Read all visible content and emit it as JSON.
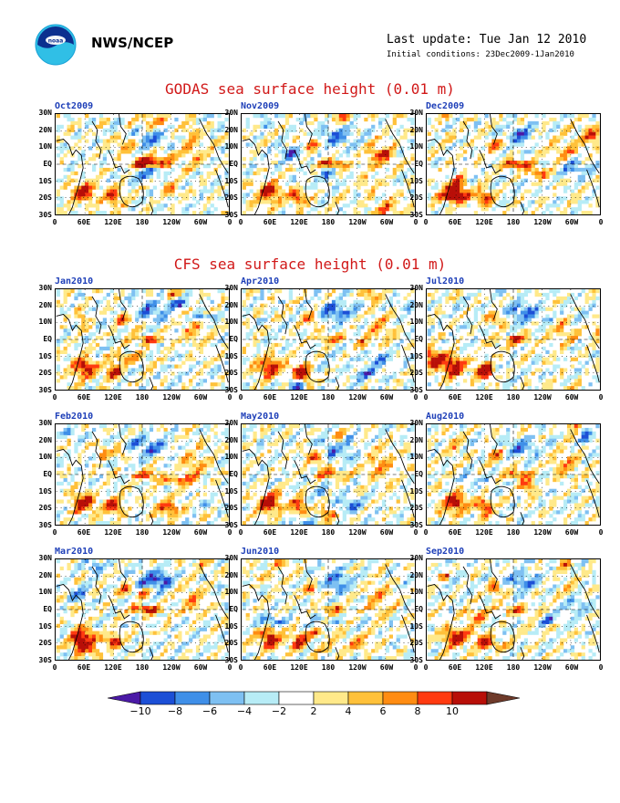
{
  "header": {
    "org": "NWS/NCEP",
    "last_update": "Last update: Tue Jan 12 2010",
    "initial_conditions": "Initial conditions: 23Dec2009-1Jan2010"
  },
  "colors": {
    "title_red": "#d11919",
    "panel_label_blue": "#1e3fb8",
    "scale": [
      "#4b1aa6",
      "#1c4fd6",
      "#3f8fe8",
      "#7ec0f2",
      "#b7ecf6",
      "#ffffff",
      "#ffe98a",
      "#ffc13a",
      "#ff8c12",
      "#ff3a10",
      "#b80f08",
      "#6e3a2a"
    ]
  },
  "chart_data": [
    {
      "type": "heatmap",
      "title": "GODAS sea surface height (0.01 m)",
      "panels": [
        "Oct2009",
        "Nov2009",
        "Dec2009"
      ],
      "y_tick_labels": [
        "30N",
        "20N",
        "10N",
        "EQ",
        "10S",
        "20S",
        "30S"
      ],
      "x_tick_labels": [
        "0",
        "60E",
        "120E",
        "180",
        "120W",
        "60W",
        "0"
      ]
    },
    {
      "type": "heatmap",
      "title": "CFS sea surface height (0.01 m)",
      "panels": [
        "Jan2010",
        "Apr2010",
        "Jul2010",
        "Feb2010",
        "May2010",
        "Aug2010",
        "Mar2010",
        "Jun2010",
        "Sep2010"
      ],
      "y_tick_labels": [
        "30N",
        "20N",
        "10N",
        "EQ",
        "10S",
        "20S",
        "30S"
      ],
      "x_tick_labels": [
        "0",
        "60E",
        "120E",
        "180",
        "120W",
        "60W",
        "0"
      ]
    }
  ],
  "colorbar": {
    "labels": [
      "−10",
      "−8",
      "−6",
      "−4",
      "−2",
      "2",
      "4",
      "6",
      "8",
      "10"
    ]
  }
}
